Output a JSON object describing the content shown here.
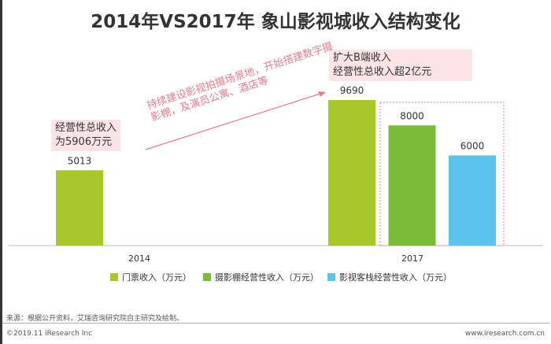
{
  "chart_data": {
    "type": "bar",
    "title": "2014年VS2017年 象山影视城收入结构变化",
    "categories": [
      "2014",
      "2017"
    ],
    "series": [
      {
        "name": "门票收入（万元）",
        "color": "#a8c72d",
        "values": [
          5013,
          9690
        ]
      },
      {
        "name": "摄影棚经营性收入（万元）",
        "color": "#7cbb3a",
        "values": [
          null,
          8000
        ]
      },
      {
        "name": "影视客栈经营性收入（万元）",
        "color": "#5bc4ea",
        "values": [
          null,
          6000
        ]
      }
    ],
    "ylim": [
      0,
      10000
    ],
    "legend": "bottom",
    "annotations": {
      "note_2014": [
        "经营性总收入",
        "为5906万元"
      ],
      "note_2017": [
        "扩大B端收入",
        "经营性总收入超2亿元"
      ],
      "arrow_text": "持续建设影视拍摄场景地，开始搭建数字摄影棚，及演员公寓、酒店等"
    }
  },
  "footer": {
    "source": "来源：根据公开资料，艾瑞咨询研究院自主研究及绘制。",
    "copyright": "©2019.11 iResearch Inc",
    "site": "www.iresearch.com.cn"
  }
}
